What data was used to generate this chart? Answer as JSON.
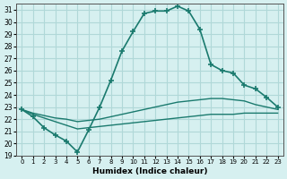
{
  "xlabel": "Humidex (Indice chaleur)",
  "bg_color": "#d6f0f0",
  "grid_color": "#b0d8d8",
  "line_color": "#1a7a6e",
  "xlim": [
    -0.5,
    23.5
  ],
  "ylim": [
    19,
    31.5
  ],
  "yticks": [
    19,
    20,
    21,
    22,
    23,
    24,
    25,
    26,
    27,
    28,
    29,
    30,
    31
  ],
  "xticks": [
    0,
    1,
    2,
    3,
    4,
    5,
    6,
    7,
    8,
    9,
    10,
    11,
    12,
    13,
    14,
    15,
    16,
    17,
    18,
    19,
    20,
    21,
    22,
    23
  ],
  "line1_x": [
    0,
    1,
    2,
    3,
    4,
    5,
    6,
    7,
    8,
    9,
    10,
    11,
    12,
    13,
    14,
    15,
    16,
    17,
    18,
    19,
    20,
    21,
    22,
    23
  ],
  "line1_y": [
    22.8,
    22.2,
    21.3,
    20.7,
    20.2,
    19.3,
    21.1,
    23.0,
    25.2,
    27.6,
    29.2,
    30.7,
    30.9,
    30.9,
    31.3,
    30.9,
    29.4,
    26.5,
    26.0,
    25.8,
    24.8,
    24.5,
    23.8,
    23.0
  ],
  "line2_x": [
    0,
    1,
    2,
    3,
    4,
    5,
    6,
    7,
    8,
    9,
    10,
    11,
    12,
    13,
    14,
    15,
    16,
    17,
    18,
    19,
    20,
    21,
    22,
    23
  ],
  "line2_y": [
    22.8,
    22.5,
    22.3,
    22.1,
    22.0,
    21.8,
    21.9,
    22.0,
    22.2,
    22.4,
    22.6,
    22.8,
    23.0,
    23.2,
    23.4,
    23.5,
    23.6,
    23.7,
    23.7,
    23.6,
    23.5,
    23.2,
    23.0,
    22.8
  ],
  "line3_x": [
    0,
    1,
    2,
    3,
    4,
    5,
    6,
    7,
    8,
    9,
    10,
    11,
    12,
    13,
    14,
    15,
    16,
    17,
    18,
    19,
    20,
    21,
    22,
    23
  ],
  "line3_y": [
    22.8,
    22.4,
    22.1,
    21.8,
    21.5,
    21.2,
    21.3,
    21.4,
    21.5,
    21.6,
    21.7,
    21.8,
    21.9,
    22.0,
    22.1,
    22.2,
    22.3,
    22.4,
    22.4,
    22.4,
    22.5,
    22.5,
    22.5,
    22.5
  ]
}
